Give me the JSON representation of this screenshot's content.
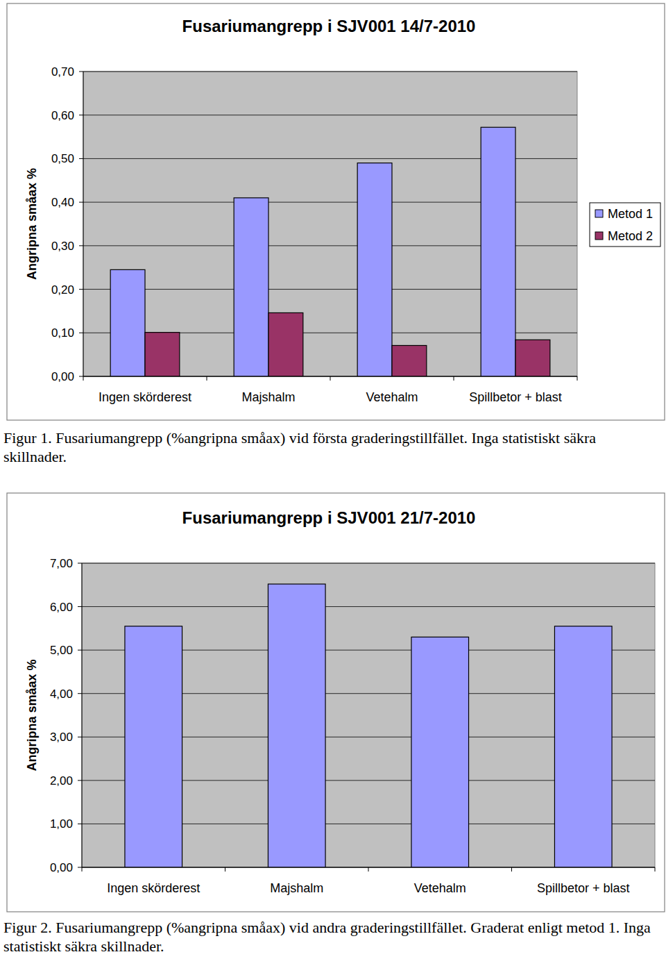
{
  "chart_data": [
    {
      "type": "bar",
      "title": "Fusariumangrepp i SJV001 14/7-2010",
      "y_label": "Angripna småax %",
      "caption": "Figur 1. Fusariumangrepp (%angripna småax) vid första graderingstillfället. Inga statistiskt säkra skillnader.",
      "categories": [
        "Ingen skörderest",
        "Majshalm",
        "Vetehalm",
        "Spillbetor + blast"
      ],
      "series": [
        {
          "name": "Metod 1",
          "color": "#9999ff",
          "values": [
            0.245,
            0.41,
            0.49,
            0.572
          ]
        },
        {
          "name": "Metod 2",
          "color": "#993366",
          "values": [
            0.101,
            0.146,
            0.071,
            0.084
          ]
        }
      ],
      "ylim": [
        0,
        0.7
      ],
      "yticks": [
        {
          "value": 0,
          "label": "0,00"
        },
        {
          "value": 0.1,
          "label": "0,10"
        },
        {
          "value": 0.2,
          "label": "0,20"
        },
        {
          "value": 0.3,
          "label": "0,30"
        },
        {
          "value": 0.4,
          "label": "0,40"
        },
        {
          "value": 0.5,
          "label": "0,50"
        },
        {
          "value": 0.6,
          "label": "0,60"
        },
        {
          "value": 0.7,
          "label": "0,70"
        }
      ],
      "grid": true,
      "legend": "right"
    },
    {
      "type": "bar",
      "title": "Fusariumangrepp i SJV001 21/7-2010",
      "y_label": "Angripna småax %",
      "caption": "Figur 2. Fusariumangrepp (%angripna småax) vid andra graderingstillfället. Graderat enligt metod 1. Inga statistiskt säkra skillnader.",
      "categories": [
        "Ingen skörderest",
        "Majshalm",
        "Vetehalm",
        "Spillbetor + blast"
      ],
      "values": [
        5.55,
        6.52,
        5.3,
        5.55
      ],
      "color": "#9999ff",
      "ylim": [
        0,
        7
      ],
      "yticks": [
        {
          "value": 0,
          "label": "0,00"
        },
        {
          "value": 1,
          "label": "1,00"
        },
        {
          "value": 2,
          "label": "2,00"
        },
        {
          "value": 3,
          "label": "3,00"
        },
        {
          "value": 4,
          "label": "4,00"
        },
        {
          "value": 5,
          "label": "5,00"
        },
        {
          "value": 6,
          "label": "6,00"
        },
        {
          "value": 7,
          "label": "7,00"
        }
      ],
      "grid": true
    }
  ]
}
